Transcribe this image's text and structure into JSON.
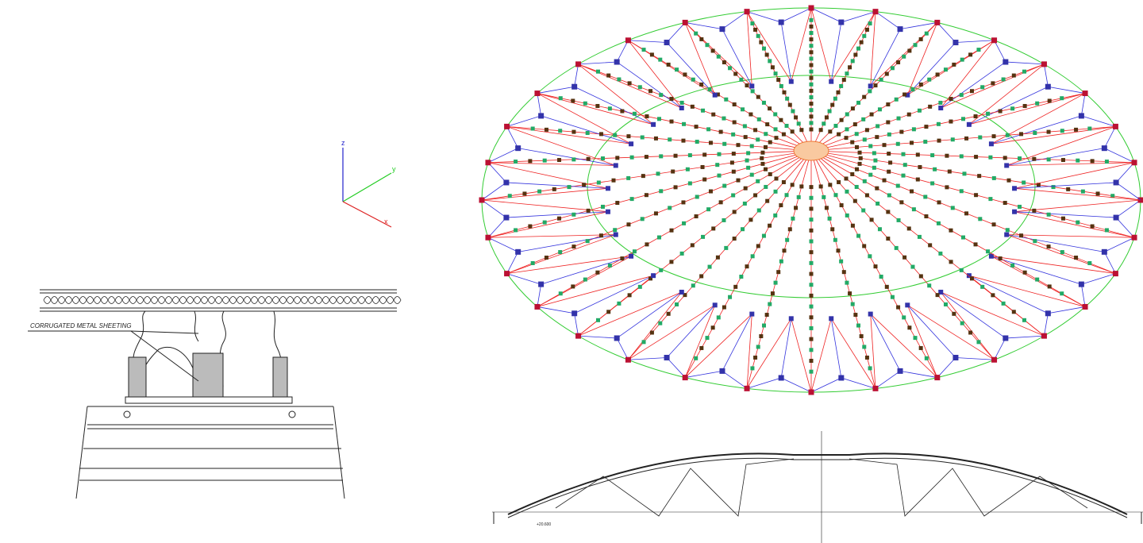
{
  "detail": {
    "label": "CORRUGATED METAL SHEETING"
  },
  "axes": {
    "z": "z",
    "y": "y",
    "x": "x"
  },
  "section": {
    "elevation": "+20.600"
  }
}
